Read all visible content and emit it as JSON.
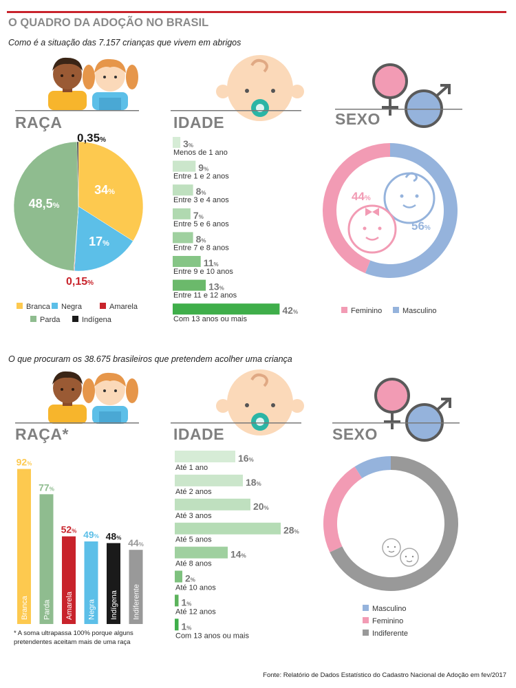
{
  "header": {
    "title": "O QUADRO DA ADOÇÃO NO BRASIL",
    "subtitle_top": "Como é a situação das 7.157 crianças que vivem em abrigos",
    "subtitle_bottom": "O que procuram os 38.675 brasileiros que pretendem acolher uma criança"
  },
  "sections": {
    "race": "RAÇA",
    "age": "IDADE",
    "sex": "SEXO",
    "race_bottom": "RAÇA*"
  },
  "footnote": "* A soma ultrapassa 100% porque alguns pretendentes aceitam mais de uma raça",
  "source": "Fonte: Relatório de Dados Estatístico do Cadastro Nacional de Adoção em fev/2017",
  "icons": [
    "boy-icon",
    "girl-icon",
    "baby-pacifier-icon",
    "gender-symbols-icon",
    "baby-faces-icon"
  ],
  "colors": {
    "branca": "#fdc94f",
    "negra": "#5cbfe8",
    "amarela": "#c8232b",
    "parda": "#8fbc8f",
    "indigena": "#1a1a1a",
    "indiferente": "#999999",
    "feminino": "#f29bb4",
    "masculino": "#95b3dc",
    "rule": "#c8232b"
  },
  "chart_data": [
    {
      "id": "race_children",
      "type": "pie",
      "labels": [
        "Branca",
        "Negra",
        "Amarela",
        "Parda",
        "Indígena"
      ],
      "values": [
        34,
        17,
        0.15,
        48.5,
        0.35
      ],
      "value_labels": [
        "34%",
        "17%",
        "0,15%",
        "48,5%",
        "0,35%"
      ],
      "legend": "bottom"
    },
    {
      "id": "age_children",
      "type": "bar",
      "orientation": "horizontal",
      "categories": [
        "Menos de 1 ano",
        "Entre 1 e 2 anos",
        "Entre 3 e 4 anos",
        "Entre 5 e 6 anos",
        "Entre 7 e 8 anos",
        "Entre 9 e 10 anos",
        "Entre 11 e 12 anos",
        "Com 13 anos ou mais"
      ],
      "values": [
        3,
        9,
        8,
        7,
        8,
        11,
        13,
        42
      ],
      "value_labels": [
        "3%",
        "9%",
        "8%",
        "7%",
        "8%",
        "11%",
        "13%",
        "42%"
      ]
    },
    {
      "id": "sex_children",
      "type": "pie",
      "donut": true,
      "labels": [
        "Feminino",
        "Masculino"
      ],
      "values": [
        44,
        56
      ],
      "value_labels": [
        "44%",
        "56%"
      ],
      "legend": "bottom"
    },
    {
      "id": "race_wanted",
      "type": "bar",
      "categories": [
        "Branca",
        "Parda",
        "Amarela",
        "Negra",
        "Indígena",
        "Indiferente"
      ],
      "values": [
        92,
        77,
        52,
        49,
        48,
        44
      ],
      "value_labels": [
        "92%",
        "77%",
        "52%",
        "49%",
        "48%",
        "44%"
      ]
    },
    {
      "id": "age_wanted",
      "type": "bar",
      "orientation": "horizontal",
      "categories": [
        "Até 1 ano",
        "Até 2 anos",
        "Até 3 anos",
        "Até 5 anos",
        "Até 8 anos",
        "Até 10 anos",
        "Até 12 anos",
        "Com 13 anos ou mais"
      ],
      "values": [
        16,
        18,
        20,
        28,
        14,
        2,
        1,
        1
      ],
      "value_labels": [
        "16%",
        "18%",
        "20%",
        "28%",
        "14%",
        "2%",
        "1%",
        "1%"
      ]
    },
    {
      "id": "sex_wanted",
      "type": "pie",
      "donut": true,
      "labels": [
        "Masculino",
        "Feminino",
        "Indiferente"
      ],
      "values": [
        9,
        23,
        68
      ],
      "legend": "bottom"
    }
  ]
}
